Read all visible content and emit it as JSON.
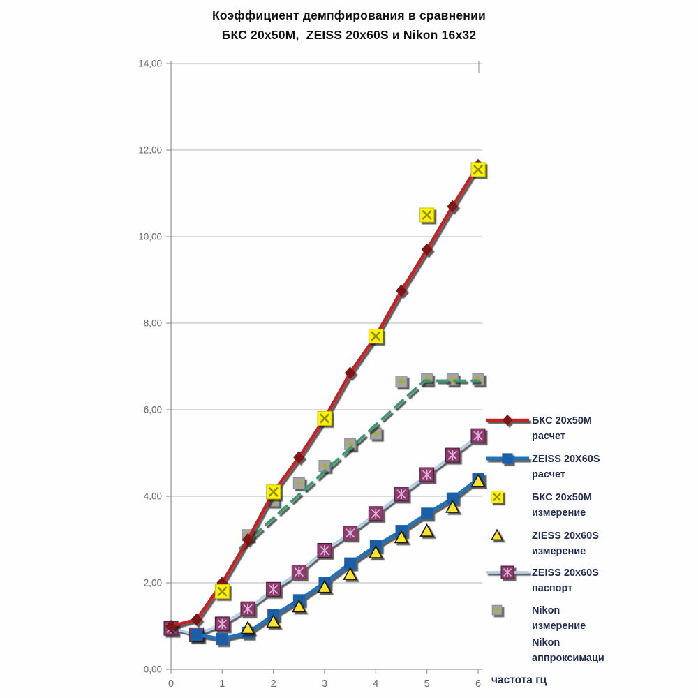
{
  "chart_data": {
    "type": "line",
    "title": "Коэффициент демпфирования в сравнении БКС 20х50М, ZEISS 20x60S и Nikon 16x32",
    "title_lines": [
      "Коэффициент демпфирования в сравнении",
      "БКС 20х50М,  ZEISS 20x60S и Nikon 16x32"
    ],
    "xlabel": "частота гц",
    "ylabel": "",
    "xlim": [
      0,
      6
    ],
    "ylim": [
      0,
      14
    ],
    "x_ticks": [
      "0",
      "1",
      "2",
      "3",
      "4",
      "5",
      "6"
    ],
    "y_ticks": [
      "0,00",
      "2,00",
      "4,00",
      "6,00",
      "8,00",
      "10,00",
      "12,00",
      "14,00"
    ],
    "grid": "horizontal",
    "legend_position": "right",
    "series": [
      {
        "id": "bks-raschet",
        "name": "БКС 20х50М расчет",
        "legend_lines": [
          "БКС 20х50М",
          "расчет"
        ],
        "kind": "line",
        "dash": false,
        "marker": "diamond",
        "line_color": "#C42127",
        "marker_fill": "#7E1215",
        "x": [
          0,
          0.5,
          1,
          1.5,
          2,
          2.5,
          3,
          3.5,
          4,
          4.5,
          5,
          5.5,
          6
        ],
        "y": [
          1.0,
          1.15,
          2.0,
          3.0,
          4.1,
          4.9,
          5.8,
          6.85,
          7.7,
          8.75,
          9.7,
          10.7,
          11.65
        ]
      },
      {
        "id": "zeiss-raschet",
        "name": "ZEISS 20X60S расчет",
        "legend_lines": [
          "ZEISS 20X60S",
          "расчет"
        ],
        "kind": "line",
        "dash": false,
        "marker": "square",
        "line_color": "#2372B9",
        "marker_fill": "#1D5FA9",
        "x": [
          0.5,
          1,
          1.5,
          2,
          2.5,
          3,
          3.5,
          4,
          4.5,
          5,
          5.5,
          6
        ],
        "y": [
          0.8,
          0.7,
          0.85,
          1.25,
          1.6,
          2.0,
          2.45,
          2.85,
          3.2,
          3.6,
          3.95,
          4.4
        ]
      },
      {
        "id": "bks-izmerenie",
        "name": "БКС 20х50М измерение",
        "legend_lines": [
          "БКС 20х50М",
          "измерение"
        ],
        "kind": "scatter",
        "dash": false,
        "marker": "x-square",
        "marker_fill": "#FCF303",
        "marker_stroke": "#CDBF00",
        "glyph_color": "#938D15",
        "x": [
          1,
          2,
          3,
          4,
          5,
          6
        ],
        "y": [
          1.8,
          4.1,
          5.8,
          7.7,
          10.5,
          11.55
        ]
      },
      {
        "id": "ziess-izmerenie",
        "name": "ZIESS 20x60S измерение",
        "legend_lines": [
          "ZIESS 20x60S",
          "измерение"
        ],
        "kind": "scatter",
        "dash": false,
        "marker": "triangle",
        "marker_fill": "#FCE12F",
        "marker_stroke": "#1F1C04",
        "x": [
          1.5,
          2,
          2.5,
          3,
          3.5,
          4,
          4.5,
          5,
          5.5,
          6
        ],
        "y": [
          0.95,
          1.1,
          1.45,
          1.9,
          2.2,
          2.7,
          3.05,
          3.2,
          3.75,
          4.35
        ]
      },
      {
        "id": "zeiss-pasport",
        "name": "ZEISS 20x60S паспорт",
        "legend_lines": [
          "ZEISS 20x60S",
          "паспорт"
        ],
        "kind": "line",
        "dash": false,
        "marker": "star-square",
        "line_color": "#AFCEEA",
        "marker_fill": "#8E3A6D",
        "marker_stroke": "#4A1535",
        "glyph_color": "#DDB5D8",
        "x": [
          0,
          0.5,
          1,
          1.5,
          2,
          2.5,
          3,
          3.5,
          4,
          4.5,
          5,
          5.5,
          6
        ],
        "y": [
          0.95,
          0.8,
          1.05,
          1.4,
          1.85,
          2.25,
          2.75,
          3.15,
          3.6,
          4.05,
          4.5,
          4.95,
          5.4
        ]
      },
      {
        "id": "nikon-izmerenie",
        "name": "Nikon измерение",
        "legend_lines": [
          "Nikon",
          "измерение"
        ],
        "kind": "scatter",
        "dash": false,
        "marker": "plus-square",
        "marker_fill": "#A5A5A5",
        "marker_stroke": "#8B8B8B",
        "glyph_color": "#ABAB3F",
        "x": [
          1.5,
          2,
          2.5,
          3,
          3.5,
          4,
          4.5,
          5,
          5.5,
          6
        ],
        "y": [
          3.1,
          3.9,
          4.3,
          4.7,
          5.2,
          5.45,
          6.65,
          6.7,
          6.7,
          6.7
        ]
      },
      {
        "id": "nikon-approx",
        "name": "Nikon аппроксимация",
        "legend_lines": [
          "Nikon",
          "аппроксимаци"
        ],
        "kind": "line",
        "dash": true,
        "marker": "dash",
        "line_color": "#3E9A6E",
        "x": [
          1.35,
          4.95,
          6
        ],
        "y": [
          2.8,
          6.67,
          6.67
        ]
      }
    ]
  },
  "colors": {
    "grid": "#B5B5B5",
    "axis": "#97999C",
    "tick_text": "#6A6A6A",
    "legend_text": "#232C4E",
    "title_text": "#111111"
  }
}
